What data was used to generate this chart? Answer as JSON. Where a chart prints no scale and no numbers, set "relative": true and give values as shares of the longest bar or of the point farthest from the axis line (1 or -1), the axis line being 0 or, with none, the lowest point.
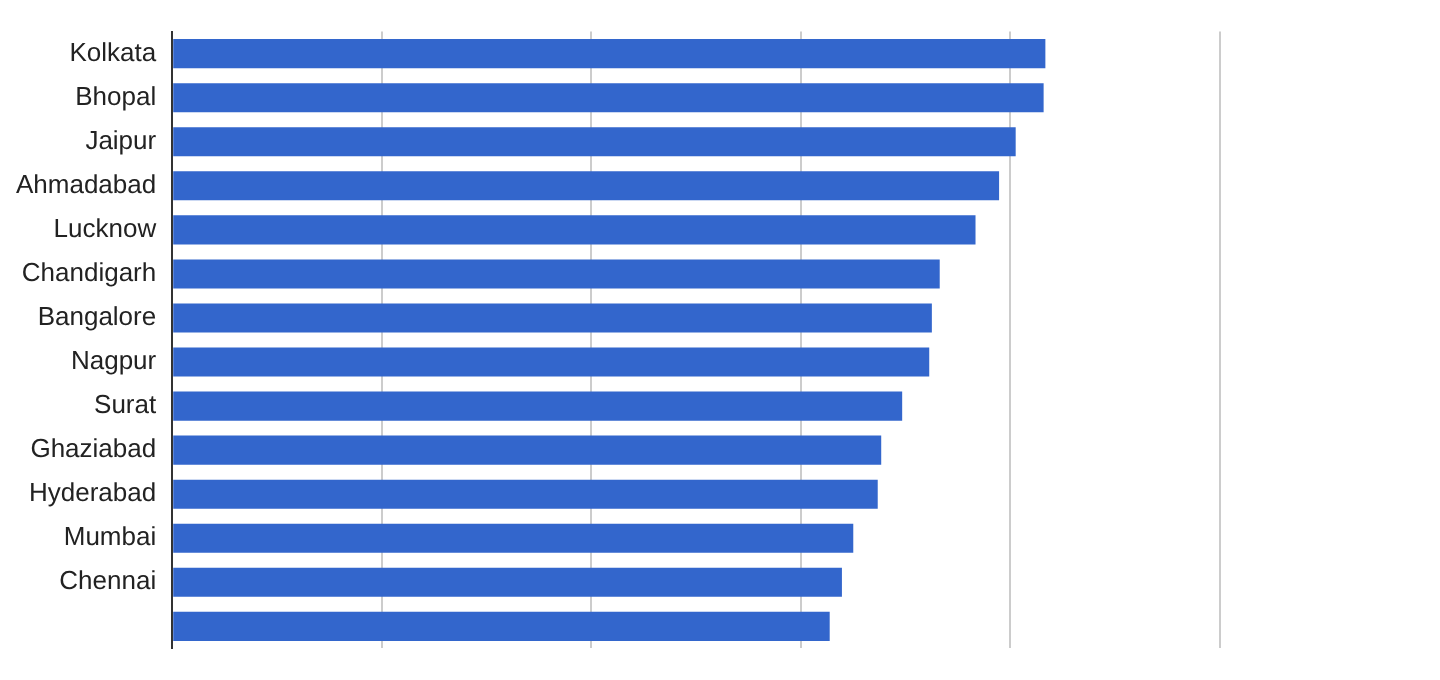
{
  "chart_data": {
    "type": "bar",
    "orientation": "horizontal",
    "relative": true,
    "grid": "x",
    "legend": false,
    "categories": [
      "Kolkata",
      "Bhopal",
      "Jaipur",
      "Ahmadabad",
      "Lucknow",
      "Chandigarh",
      "Bangalore",
      "Nagpur",
      "Surat",
      "Ghaziabad",
      "Hyderabad",
      "Mumbai",
      "Chennai",
      null
    ],
    "values": [
      1,
      0.998,
      0.966,
      0.947,
      0.92,
      0.879,
      0.87,
      0.867,
      0.836,
      0.812,
      0.808,
      0.78,
      0.767,
      0.753
    ],
    "color": "#3366cc"
  }
}
